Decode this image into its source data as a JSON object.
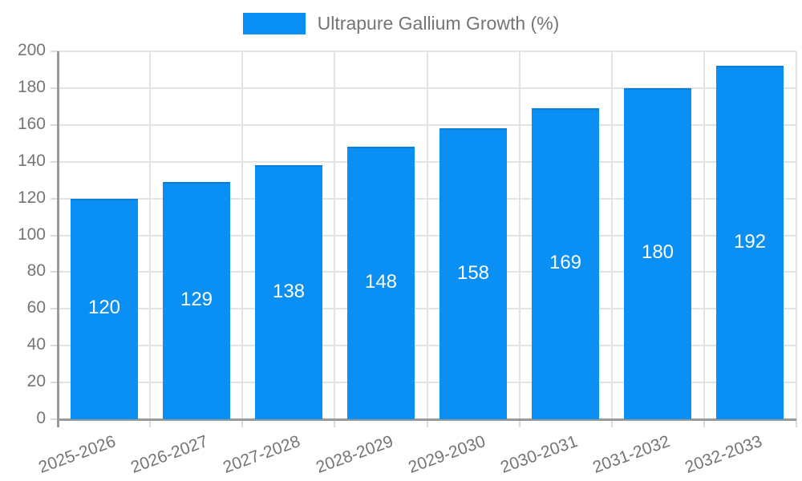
{
  "legend": {
    "label": "Ultrapure Gallium Growth (%)"
  },
  "colors": {
    "bar": "#0a90f4",
    "bar_border": "#0a7fd6",
    "bar_label": "#ffffff",
    "axis_line": "#9a9a9a",
    "grid_line": "#e3e3e3",
    "tick": "#d9d9d9",
    "axis_text": "#757575",
    "legend_text": "#757575",
    "background": "#ffffff"
  },
  "chart_data": {
    "type": "bar",
    "title": "",
    "xlabel": "",
    "ylabel": "",
    "categories": [
      "2025-2026",
      "2026-2027",
      "2027-2028",
      "2028-2029",
      "2029-2030",
      "2030-2031",
      "2031-2032",
      "2032-2033"
    ],
    "series": [
      {
        "name": "Ultrapure Gallium Growth (%)",
        "values": [
          120,
          129,
          138,
          148,
          158,
          169,
          180,
          192
        ]
      }
    ],
    "value_labels": [
      120,
      129,
      138,
      148,
      158,
      169,
      180,
      192
    ],
    "ylim": [
      0,
      200
    ],
    "ytick_step": 20,
    "yticks": [
      0,
      20,
      40,
      60,
      80,
      100,
      120,
      140,
      160,
      180,
      200
    ],
    "grid": true,
    "legend_position": "top-center",
    "value_label_position": "inside-center",
    "x_tick_rotation_deg": -20
  }
}
